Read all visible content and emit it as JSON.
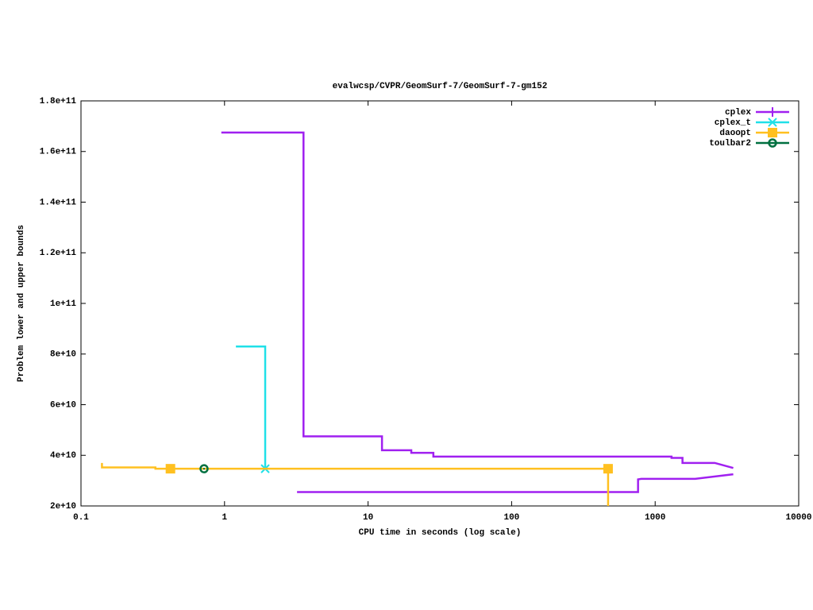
{
  "chart_data": {
    "type": "line",
    "title": "evalwcsp/CVPR/GeomSurf-7/GeomSurf-7-gm152",
    "x_label": "CPU time in seconds (log scale)",
    "y_label": "Problem lower and upper bounds",
    "xscale": "log",
    "xlim": [
      0.1,
      10000
    ],
    "xticks": [
      0.1,
      1,
      10,
      100,
      1000,
      10000
    ],
    "ylim": [
      20000000000,
      180000000000
    ],
    "yticks": [
      {
        "value": 20000000000,
        "label": "2e+10"
      },
      {
        "value": 40000000000,
        "label": "4e+10"
      },
      {
        "value": 60000000000,
        "label": "6e+10"
      },
      {
        "value": 80000000000,
        "label": "8e+10"
      },
      {
        "value": 100000000000,
        "label": "1e+11"
      },
      {
        "value": 120000000000,
        "label": "1.2e+11"
      },
      {
        "value": 140000000000,
        "label": "1.4e+11"
      },
      {
        "value": 160000000000,
        "label": "1.6e+11"
      },
      {
        "value": 180000000000,
        "label": "1.8e+11"
      }
    ],
    "grid": false,
    "legend": "top-right",
    "series": [
      {
        "name": "cplex",
        "color": "#a020f0",
        "marker": "plus",
        "x": [
          0.95,
          3.55,
          3.55,
          12.5,
          12.5,
          20,
          20,
          28.5,
          28.5,
          1300,
          1300,
          1550,
          1550,
          2600,
          3500,
          null,
          3.2,
          760,
          760,
          800,
          1900,
          3500
        ],
        "values": [
          167500000000,
          167500000000,
          47500000000,
          47500000000,
          42000000000,
          42000000000,
          41000000000,
          41000000000,
          39500000000,
          39500000000,
          39000000000,
          39000000000,
          37000000000,
          37000000000,
          35000000000,
          null,
          25500000000,
          25500000000,
          30500000000,
          30700000000,
          30700000000,
          32500000000
        ],
        "points_x": [],
        "points_values": []
      },
      {
        "name": "cplex_t",
        "color": "#20e0e8",
        "marker": "cross",
        "x": [
          1.2,
          1.92,
          1.92
        ],
        "values": [
          83000000000,
          83000000000,
          34700000000
        ],
        "points_x": [
          1.92
        ],
        "points_values": [
          34700000000
        ]
      },
      {
        "name": "daoopt",
        "color": "#ffc020",
        "marker": "square",
        "x": [
          0.14,
          0.14,
          0.33,
          0.33,
          470,
          470
        ],
        "values": [
          37000000000,
          35200000000,
          35200000000,
          34700000000,
          34700000000,
          20000000000
        ],
        "points_x": [
          0.42,
          470
        ],
        "points_values": [
          34700000000,
          34700000000
        ]
      },
      {
        "name": "toulbar2",
        "color": "#007040",
        "marker": "circle",
        "x": [
          0.72
        ],
        "values": [
          34700000000
        ],
        "points_x": [
          0.72
        ],
        "points_values": [
          34700000000
        ]
      }
    ]
  }
}
